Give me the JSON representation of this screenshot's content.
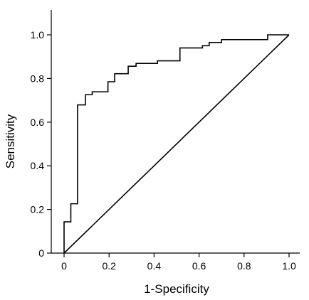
{
  "chart_data": {
    "type": "line",
    "title": "",
    "xlabel": "1-Specificity",
    "ylabel": "Sensitivity",
    "xlim": [
      0,
      1.0
    ],
    "ylim": [
      0,
      1.0
    ],
    "grid": false,
    "x_ticks": [
      "0",
      "0.2",
      "0.4",
      "0.6",
      "0.8",
      "1.0"
    ],
    "x_tick_values": [
      0,
      0.2,
      0.4,
      0.6,
      0.8,
      1.0
    ],
    "y_ticks": [
      "0",
      "0.2",
      "0.4",
      "0.6",
      "0.8",
      "1.0"
    ],
    "y_tick_values": [
      0,
      0.2,
      0.4,
      0.6,
      0.8,
      1.0
    ],
    "series": [
      {
        "kind": "step",
        "points": [
          [
            0.0,
            0.0
          ],
          [
            0.0,
            0.143
          ],
          [
            0.03,
            0.143
          ],
          [
            0.03,
            0.226
          ],
          [
            0.06,
            0.226
          ],
          [
            0.06,
            0.679
          ],
          [
            0.095,
            0.679
          ],
          [
            0.095,
            0.726
          ],
          [
            0.125,
            0.726
          ],
          [
            0.125,
            0.739
          ],
          [
            0.195,
            0.739
          ],
          [
            0.195,
            0.785
          ],
          [
            0.225,
            0.785
          ],
          [
            0.225,
            0.822
          ],
          [
            0.285,
            0.822
          ],
          [
            0.285,
            0.856
          ],
          [
            0.32,
            0.856
          ],
          [
            0.32,
            0.869
          ],
          [
            0.415,
            0.869
          ],
          [
            0.415,
            0.881
          ],
          [
            0.515,
            0.881
          ],
          [
            0.515,
            0.94
          ],
          [
            0.615,
            0.94
          ],
          [
            0.615,
            0.95
          ],
          [
            0.645,
            0.95
          ],
          [
            0.645,
            0.965
          ],
          [
            0.7,
            0.965
          ],
          [
            0.7,
            0.978
          ],
          [
            0.905,
            0.978
          ],
          [
            0.905,
            1.0
          ],
          [
            1.0,
            1.0
          ]
        ]
      },
      {
        "kind": "reference",
        "points": [
          [
            0,
            0
          ],
          [
            1.0,
            1.0
          ]
        ]
      }
    ]
  }
}
